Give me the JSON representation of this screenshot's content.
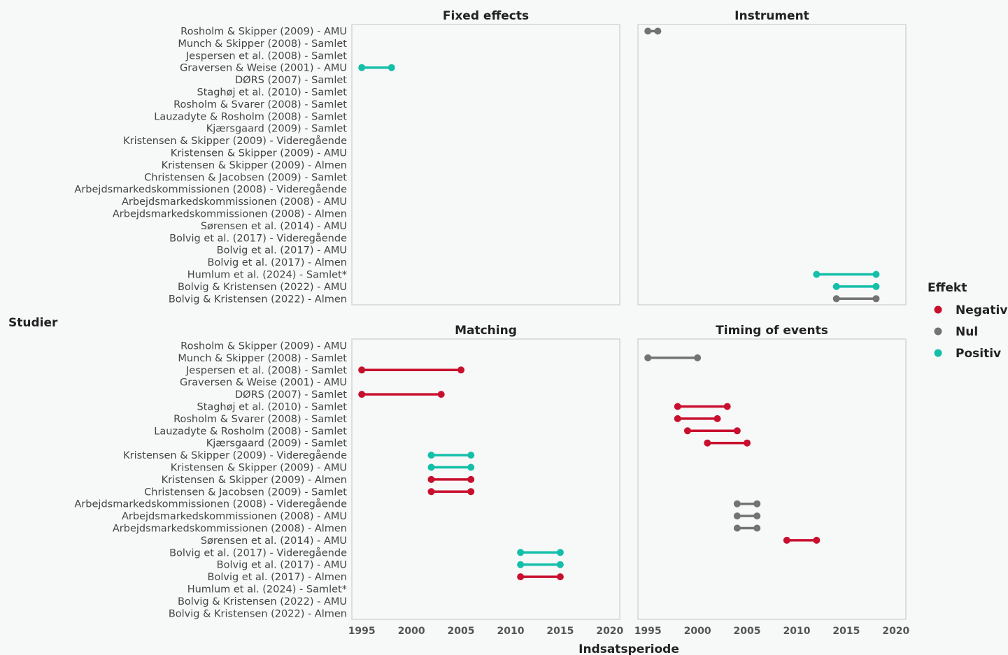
{
  "chart_data": {
    "type": "dumbbell",
    "xlabel": "Indsatsperiode",
    "ylabel": "Studier",
    "xlim": [
      1994,
      2021
    ],
    "x_ticks": [
      1995,
      2000,
      2005,
      2010,
      2015,
      2020
    ],
    "legend": {
      "title": "Effekt",
      "placement": "right",
      "entries": [
        {
          "name": "Negativ",
          "color": "#c8102e"
        },
        {
          "name": "Nul",
          "color": "#737373"
        },
        {
          "name": "Positiv",
          "color": "#14bfa9"
        }
      ]
    },
    "studies": [
      "Rosholm & Skipper (2009) - AMU",
      "Munch & Skipper (2008) - Samlet",
      "Jespersen et al. (2008) - Samlet",
      "Graversen & Weise (2001) - AMU",
      "DØRS (2007)  - Samlet",
      "Staghøj et al. (2010) - Samlet",
      "Rosholm & Svarer (2008) - Samlet",
      "Lauzadyte & Rosholm (2008) - Samlet",
      "Kjærsgaard (2009) - Samlet",
      "Kristensen & Skipper (2009) - Videregående",
      "Kristensen & Skipper (2009) - AMU",
      "Kristensen & Skipper (2009) - Almen",
      "Christensen & Jacobsen (2009) - Samlet",
      "Arbejdsmarkedskommissionen (2008) - Videregående",
      "Arbejdsmarkedskommissionen (2008) - AMU",
      "Arbejdsmarkedskommissionen (2008) - Almen",
      "Sørensen et al. (2014) - AMU",
      "Bolvig et al. (2017) - Videregående",
      "Bolvig et al. (2017) - AMU",
      "Bolvig et al. (2017) - Almen",
      "Humlum et al. (2024) - Samlet*",
      "Bolvig & Kristensen (2022) - AMU",
      "Bolvig & Kristensen (2022) -  Almen"
    ],
    "panels": [
      {
        "title": "Fixed effects",
        "segments": [
          {
            "study": 3,
            "start": 1995,
            "end": 1998,
            "effect": "Positiv"
          }
        ]
      },
      {
        "title": "Instrument",
        "segments": [
          {
            "study": 0,
            "start": 1995,
            "end": 1996,
            "effect": "Nul"
          },
          {
            "study": 20,
            "start": 2012,
            "end": 2018,
            "effect": "Positiv"
          },
          {
            "study": 21,
            "start": 2014,
            "end": 2018,
            "effect": "Positiv"
          },
          {
            "study": 22,
            "start": 2014,
            "end": 2018,
            "effect": "Nul"
          }
        ]
      },
      {
        "title": "Matching",
        "segments": [
          {
            "study": 2,
            "start": 1995,
            "end": 2005,
            "effect": "Negativ"
          },
          {
            "study": 4,
            "start": 1995,
            "end": 2003,
            "effect": "Negativ"
          },
          {
            "study": 9,
            "start": 2002,
            "end": 2006,
            "effect": "Positiv"
          },
          {
            "study": 10,
            "start": 2002,
            "end": 2006,
            "effect": "Positiv"
          },
          {
            "study": 11,
            "start": 2002,
            "end": 2006,
            "effect": "Negativ"
          },
          {
            "study": 12,
            "start": 2002,
            "end": 2006,
            "effect": "Negativ"
          },
          {
            "study": 17,
            "start": 2011,
            "end": 2015,
            "effect": "Positiv"
          },
          {
            "study": 18,
            "start": 2011,
            "end": 2015,
            "effect": "Positiv"
          },
          {
            "study": 19,
            "start": 2011,
            "end": 2015,
            "effect": "Negativ"
          }
        ]
      },
      {
        "title": "Timing of events",
        "segments": [
          {
            "study": 1,
            "start": 1995,
            "end": 2000,
            "effect": "Nul"
          },
          {
            "study": 5,
            "start": 1998,
            "end": 2003,
            "effect": "Negativ"
          },
          {
            "study": 6,
            "start": 1998,
            "end": 2002,
            "effect": "Negativ"
          },
          {
            "study": 7,
            "start": 1999,
            "end": 2004,
            "effect": "Negativ"
          },
          {
            "study": 8,
            "start": 2001,
            "end": 2005,
            "effect": "Negativ"
          },
          {
            "study": 13,
            "start": 2004,
            "end": 2006,
            "effect": "Nul"
          },
          {
            "study": 14,
            "start": 2004,
            "end": 2006,
            "effect": "Nul"
          },
          {
            "study": 15,
            "start": 2004,
            "end": 2006,
            "effect": "Nul"
          },
          {
            "study": 16,
            "start": 2009,
            "end": 2012,
            "effect": "Negativ"
          }
        ]
      }
    ]
  }
}
